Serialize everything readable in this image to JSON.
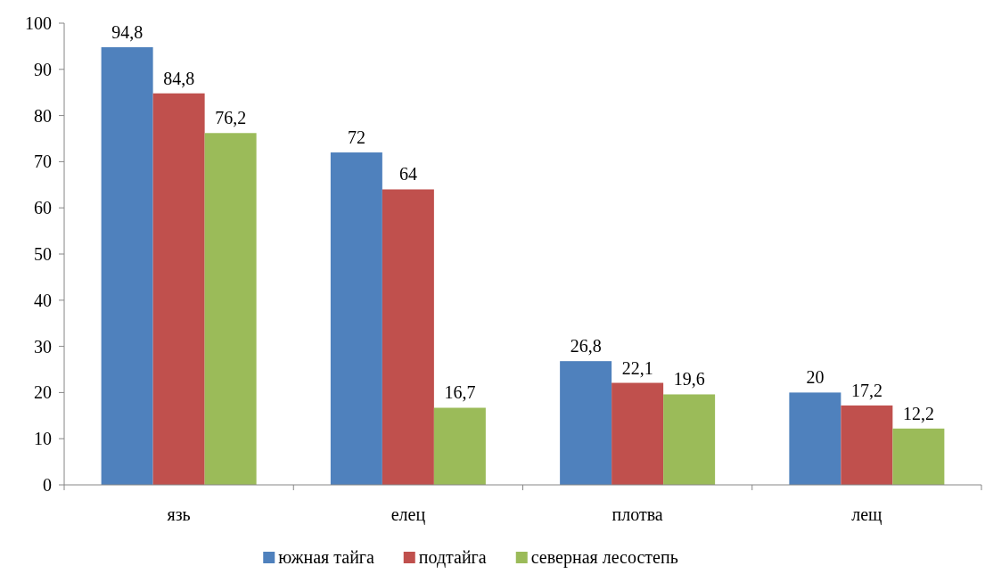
{
  "chart_data": {
    "type": "bar",
    "categories": [
      "язь",
      "елец",
      "плотва",
      "лещ"
    ],
    "series": [
      {
        "name": "южная тайга",
        "color": "#4f81bd",
        "values": [
          94.8,
          72,
          26.8,
          20
        ],
        "value_labels": [
          "94,8",
          "72",
          "26,8",
          "20"
        ]
      },
      {
        "name": "подтайга",
        "color": "#c0504d",
        "values": [
          84.8,
          64,
          22.1,
          17.2
        ],
        "value_labels": [
          "84,8",
          "64",
          "22,1",
          "17,2"
        ]
      },
      {
        "name": "северная лесостепь",
        "color": "#9bbb59",
        "values": [
          76.2,
          16.7,
          19.6,
          12.2
        ],
        "value_labels": [
          "76,2",
          "16,7",
          "19,6",
          "12,2"
        ]
      }
    ],
    "ylim": [
      0,
      100
    ],
    "yticks": [
      0,
      10,
      20,
      30,
      40,
      50,
      60,
      70,
      80,
      90,
      100
    ],
    "grid": false,
    "legend": "bottom"
  }
}
